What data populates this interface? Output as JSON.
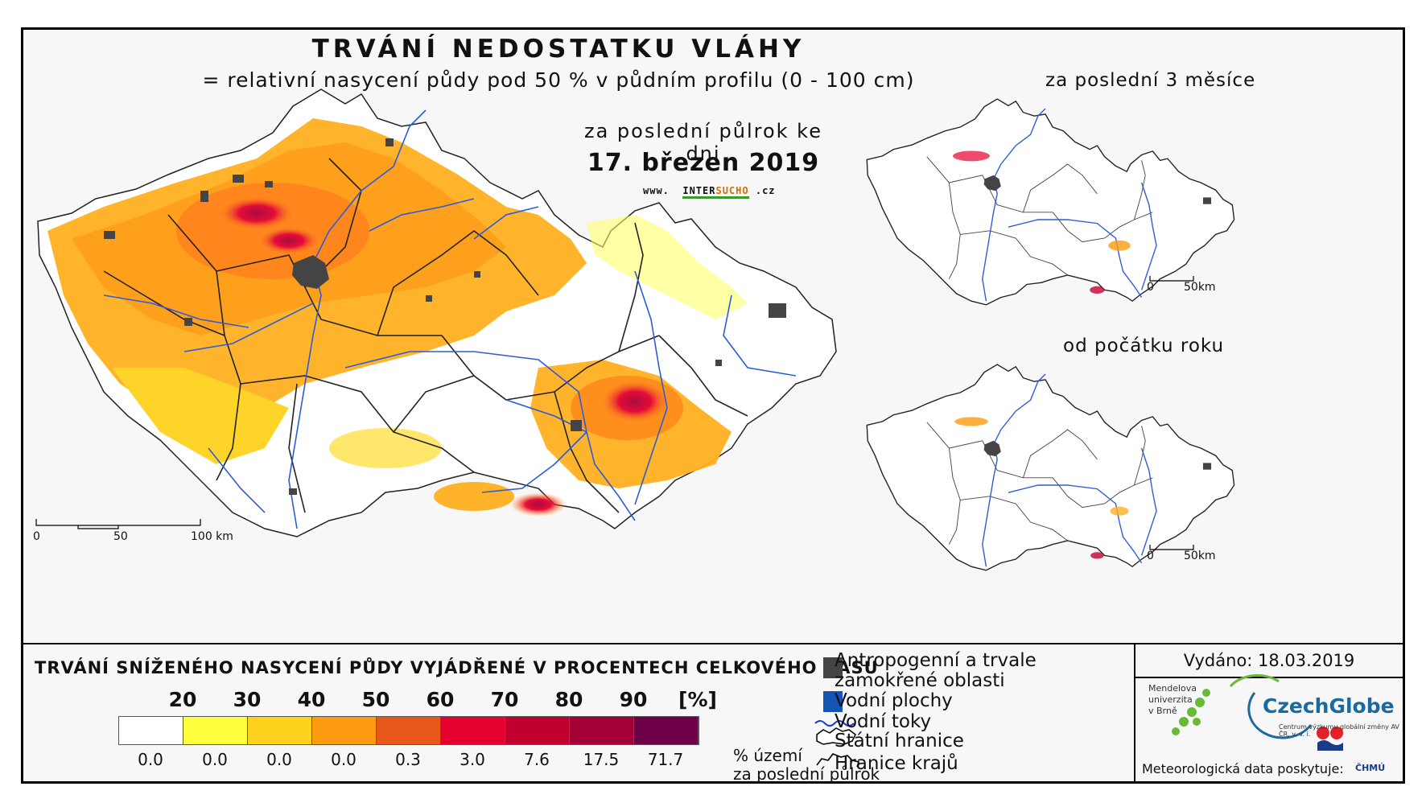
{
  "title": "TRVÁNÍ NEDOSTATKU VLÁHY",
  "subtitle": "= relativní nasycení půdy pod 50 % v půdním profilu (0 - 100 cm)",
  "period": "za poslední půlrok ke dni",
  "date": "17. březen 2019",
  "website": {
    "prefix": "www.",
    "a": "INTER",
    "b": "SUCHO",
    "suffix": ".cz"
  },
  "main_scale": {
    "labels": [
      "0",
      "50",
      "100 km"
    ]
  },
  "insets": [
    {
      "label": "za poslední 3 měsíce",
      "scale": [
        "0",
        "50km"
      ]
    },
    {
      "label": "od počátku roku",
      "scale": [
        "0",
        "50km"
      ]
    }
  ],
  "legend": {
    "title": "TRVÁNÍ SNÍŽENÉHO NASYCENÍ PŮDY VYJÁDŘENÉ V PROCENTECH CELKOVÉHO ČASU",
    "class_labels": [
      "20",
      "30",
      "40",
      "50",
      "60",
      "70",
      "80",
      "90",
      "[%]"
    ],
    "colors": [
      "#ffffff",
      "#ffff40",
      "#ffd21e",
      "#ff9b10",
      "#e8581a",
      "#e5002d",
      "#c2002f",
      "#a30036",
      "#6d0046"
    ],
    "percentages": [
      "0.0",
      "0.0",
      "0.0",
      "0.0",
      "0.3",
      "3.0",
      "7.6",
      "17.5",
      "71.7"
    ],
    "pct_unit_line1": "% území",
    "pct_unit_line2": "za poslední půlrok",
    "symbols": [
      {
        "label1": "Antropogenní a trvale",
        "label2": "zamokřené oblasti",
        "icon": "urban-square-icon",
        "color": "#444444"
      },
      {
        "label1": "Vodní plochy",
        "icon": "water-square-icon",
        "color": "#1454b4"
      },
      {
        "label1": "Vodní toky",
        "icon": "river-line-icon",
        "color": "#1a3ad0"
      },
      {
        "label1": "Státní hranice",
        "icon": "state-border-icon",
        "color": "#000000"
      },
      {
        "label1": "Hranice krajů",
        "icon": "region-border-icon",
        "color": "#000000"
      }
    ]
  },
  "issued": "Vydáno: 18.03.2019",
  "mendel": {
    "l1": "Mendelova",
    "l2": "univerzita",
    "l3": "v Brně"
  },
  "czechglobe": {
    "name": "CzechGlobe",
    "sub": "Centrum výzkumu globální změny AV ČR, v. v. i."
  },
  "meteo": "Meteorologická data poskytuje:",
  "chmu": "ČHMÚ"
}
